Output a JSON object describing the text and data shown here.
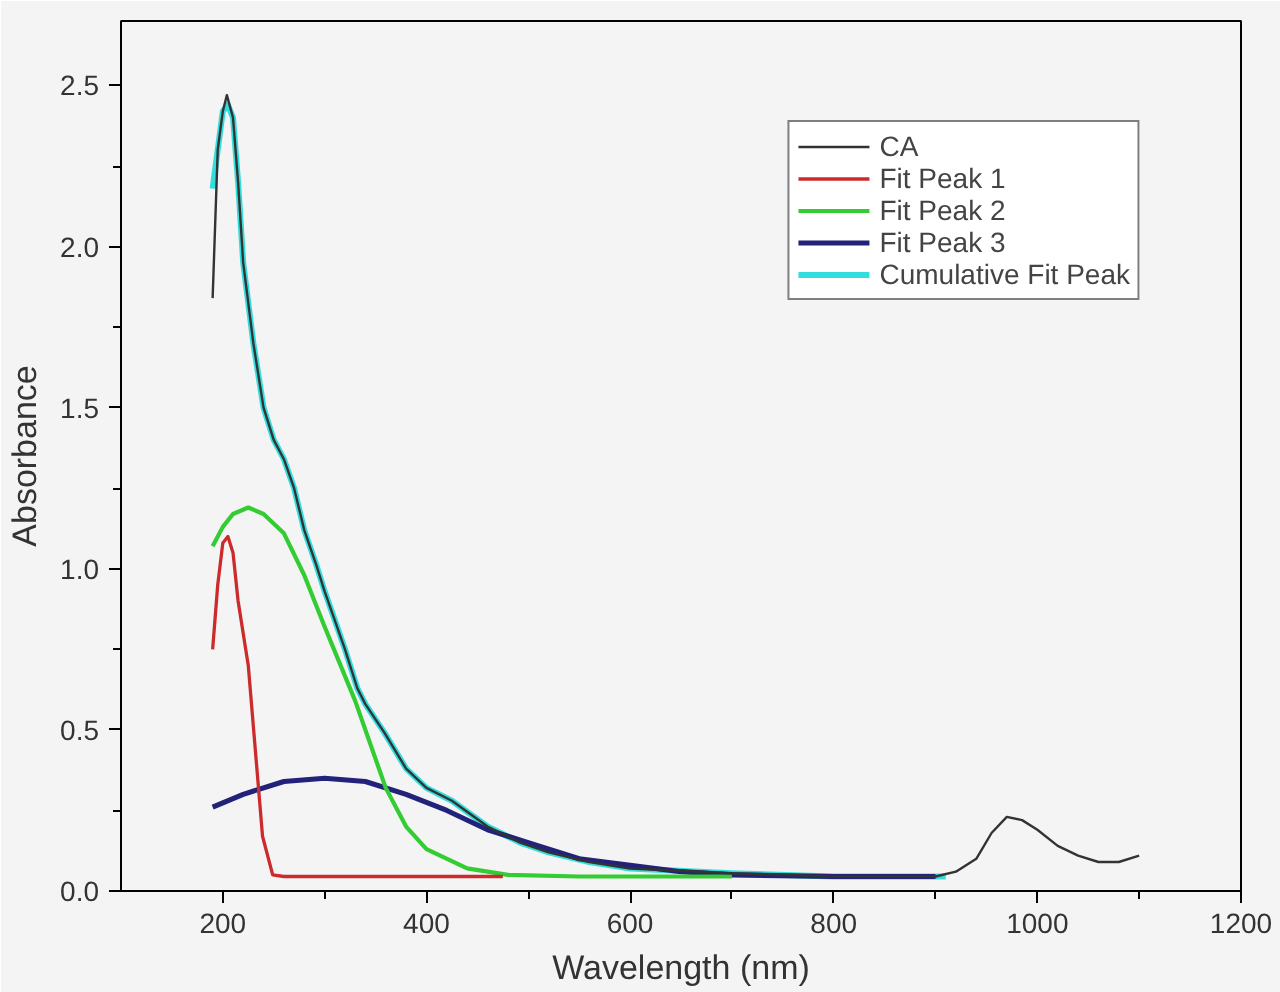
{
  "chart_data": {
    "type": "line",
    "xlabel": "Wavelength (nm)",
    "ylabel": "Absorbance",
    "xlim": [
      100,
      1200
    ],
    "ylim": [
      0,
      2.7
    ],
    "xticks": [
      200,
      400,
      600,
      800,
      1000,
      1200
    ],
    "yticks": [
      {
        "value": 0,
        "label": "0.0"
      },
      0.5,
      {
        "value": 1,
        "label": "1.0"
      },
      1.5,
      {
        "value": 2,
        "label": "2.0"
      },
      2.5
    ],
    "grid": false,
    "legend": "top right",
    "marker": "none",
    "line_style": "solid",
    "series": [
      {
        "name": "CA",
        "color": "#333333",
        "x": [
          190,
          195,
          200,
          204,
          210,
          215,
          220,
          230,
          240,
          250,
          260,
          270,
          280,
          292,
          300,
          320,
          332,
          340,
          359,
          380,
          400,
          425,
          460,
          492,
          520,
          560,
          600,
          700,
          800,
          900,
          920,
          940,
          955,
          970,
          985,
          1000,
          1020,
          1040,
          1060,
          1080,
          1100
        ],
        "values": [
          1.84,
          2.3,
          2.42,
          2.47,
          2.4,
          2.2,
          1.95,
          1.7,
          1.5,
          1.4,
          1.34,
          1.25,
          1.12,
          1.01,
          0.93,
          0.75,
          0.63,
          0.58,
          0.49,
          0.38,
          0.32,
          0.28,
          0.2,
          0.15,
          0.12,
          0.09,
          0.07,
          0.055,
          0.045,
          0.045,
          0.06,
          0.1,
          0.18,
          0.23,
          0.22,
          0.19,
          0.14,
          0.11,
          0.09,
          0.09,
          0.11
        ]
      },
      {
        "name": "Fit Peak 1",
        "color": "#cc2b2b",
        "x": [
          190,
          195,
          200,
          205,
          210,
          215,
          225,
          239,
          249,
          260,
          300,
          400,
          475
        ],
        "values": [
          0.75,
          0.95,
          1.08,
          1.1,
          1.05,
          0.9,
          0.7,
          0.17,
          0.05,
          0.045,
          0.045,
          0.045,
          0.045
        ]
      },
      {
        "name": "Fit Peak 2",
        "color": "#33cc33",
        "x": [
          190,
          200,
          210,
          225,
          240,
          260,
          280,
          300,
          330,
          360,
          380,
          400,
          440,
          480,
          550,
          700
        ],
        "values": [
          1.07,
          1.13,
          1.17,
          1.19,
          1.17,
          1.11,
          0.98,
          0.82,
          0.59,
          0.32,
          0.2,
          0.13,
          0.07,
          0.05,
          0.045,
          0.045
        ]
      },
      {
        "name": "Fit Peak 3",
        "color": "#22227a",
        "x": [
          190,
          220,
          260,
          300,
          340,
          380,
          420,
          460,
          500,
          550,
          600,
          650,
          700,
          800,
          900
        ],
        "values": [
          0.26,
          0.3,
          0.34,
          0.35,
          0.34,
          0.3,
          0.25,
          0.19,
          0.15,
          0.1,
          0.08,
          0.06,
          0.05,
          0.045,
          0.045
        ]
      },
      {
        "name": "Cumulative Fit Peak",
        "color": "#33dddd",
        "x": [
          190,
          195,
          200,
          205,
          210,
          215,
          220,
          230,
          240,
          250,
          260,
          270,
          280,
          292,
          300,
          320,
          332,
          340,
          359,
          380,
          400,
          425,
          460,
          492,
          520,
          560,
          600,
          700,
          800,
          900,
          910
        ],
        "values": [
          2.18,
          2.3,
          2.42,
          2.44,
          2.4,
          2.2,
          1.95,
          1.7,
          1.5,
          1.4,
          1.34,
          1.25,
          1.12,
          1.01,
          0.93,
          0.75,
          0.63,
          0.58,
          0.49,
          0.38,
          0.32,
          0.28,
          0.2,
          0.15,
          0.12,
          0.09,
          0.07,
          0.055,
          0.045,
          0.045,
          0.045
        ]
      }
    ]
  }
}
